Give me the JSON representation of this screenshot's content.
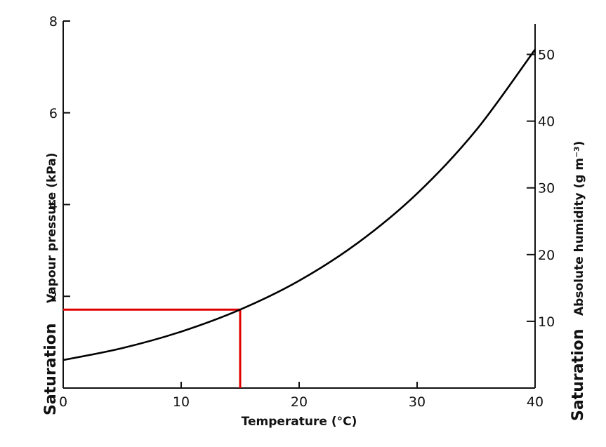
{
  "chart_data": {
    "type": "line",
    "title": "",
    "xlabel": "Temperature (°C)",
    "ylabel_left_prefix": "Saturation",
    "ylabel_left": "Vapour pressure (kPa)",
    "ylabel_right_prefix": "Saturation",
    "ylabel_right": "Absolute humidity (g m⁻³)",
    "xlim": [
      0,
      40
    ],
    "ylim_left": [
      0,
      8
    ],
    "ylim_right": [
      0,
      55
    ],
    "x_ticks": [
      0,
      10,
      20,
      30,
      40
    ],
    "y_left_ticks": [
      2,
      4,
      6,
      8
    ],
    "y_right_ticks": [
      10,
      20,
      30,
      40,
      50
    ],
    "grid": false,
    "series": [
      {
        "x": [
          0,
          5,
          10,
          15,
          20,
          25,
          30,
          35,
          40
        ],
        "y": [
          0.61,
          0.87,
          1.23,
          1.71,
          2.34,
          3.17,
          4.24,
          5.62,
          7.38
        ]
      }
    ],
    "annotation": {
      "x": 15,
      "y": 1.71,
      "color": "#e00000"
    }
  }
}
